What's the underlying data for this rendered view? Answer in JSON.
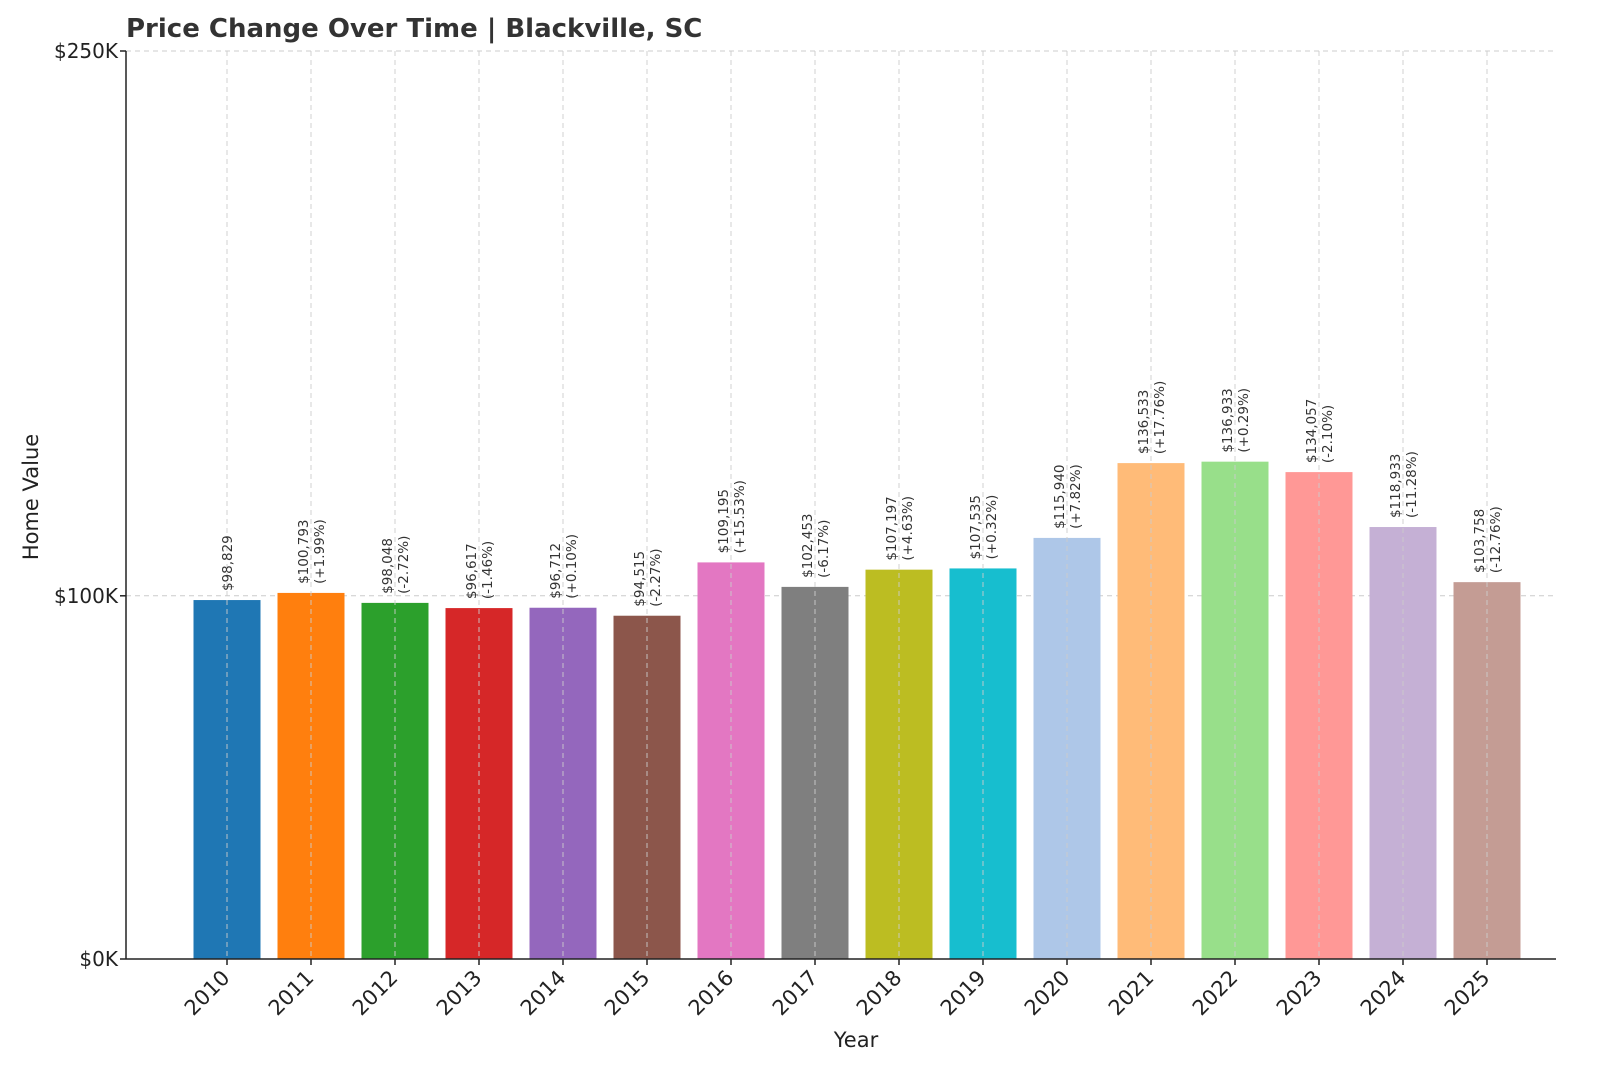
{
  "chart_data": {
    "type": "bar",
    "title": "Price Change Over Time | Blackville, SC",
    "xlabel": "Year",
    "ylabel": "Home Value",
    "ylim": [
      0,
      250000
    ],
    "scale": "linear",
    "yticks": [
      {
        "value": 0,
        "label": "$0K"
      },
      {
        "value": 100000,
        "label": "$100K"
      },
      {
        "value": 250000,
        "label": "$250K"
      }
    ],
    "grid": true,
    "categories": [
      "2010",
      "2011",
      "2012",
      "2013",
      "2014",
      "2015",
      "2016",
      "2017",
      "2018",
      "2019",
      "2020",
      "2021",
      "2022",
      "2023",
      "2024",
      "2025"
    ],
    "values": [
      98829,
      100793,
      98048,
      96617,
      96712,
      94515,
      109195,
      102453,
      107197,
      107535,
      115940,
      136533,
      136933,
      134057,
      118933,
      103758
    ],
    "value_labels": [
      "$98,829",
      "$100,793",
      "$98,048",
      "$96,617",
      "$96,712",
      "$94,515",
      "$109,195",
      "$102,453",
      "$107,197",
      "$107,535",
      "$115,940",
      "$136,533",
      "$136,933",
      "$134,057",
      "$118,933",
      "$103,758"
    ],
    "change_labels": [
      "",
      "(+1.99%)",
      "(-2.72%)",
      "(-1.46%)",
      "(+0.10%)",
      "(-2.27%)",
      "(+15.53%)",
      "(-6.17%)",
      "(+4.63%)",
      "(+0.32%)",
      "(+7.82%)",
      "(+17.76%)",
      "(+0.29%)",
      "(-2.10%)",
      "(-11.28%)",
      "(-12.76%)"
    ],
    "colors": [
      "#1f77b4",
      "#ff7f0e",
      "#2ca02c",
      "#d62728",
      "#9467bd",
      "#8c564b",
      "#e377c2",
      "#7f7f7f",
      "#bcbd22",
      "#17becf",
      "#aec7e8",
      "#ffbb78",
      "#98df8a",
      "#ff9896",
      "#c5b0d5",
      "#c49c94"
    ]
  }
}
